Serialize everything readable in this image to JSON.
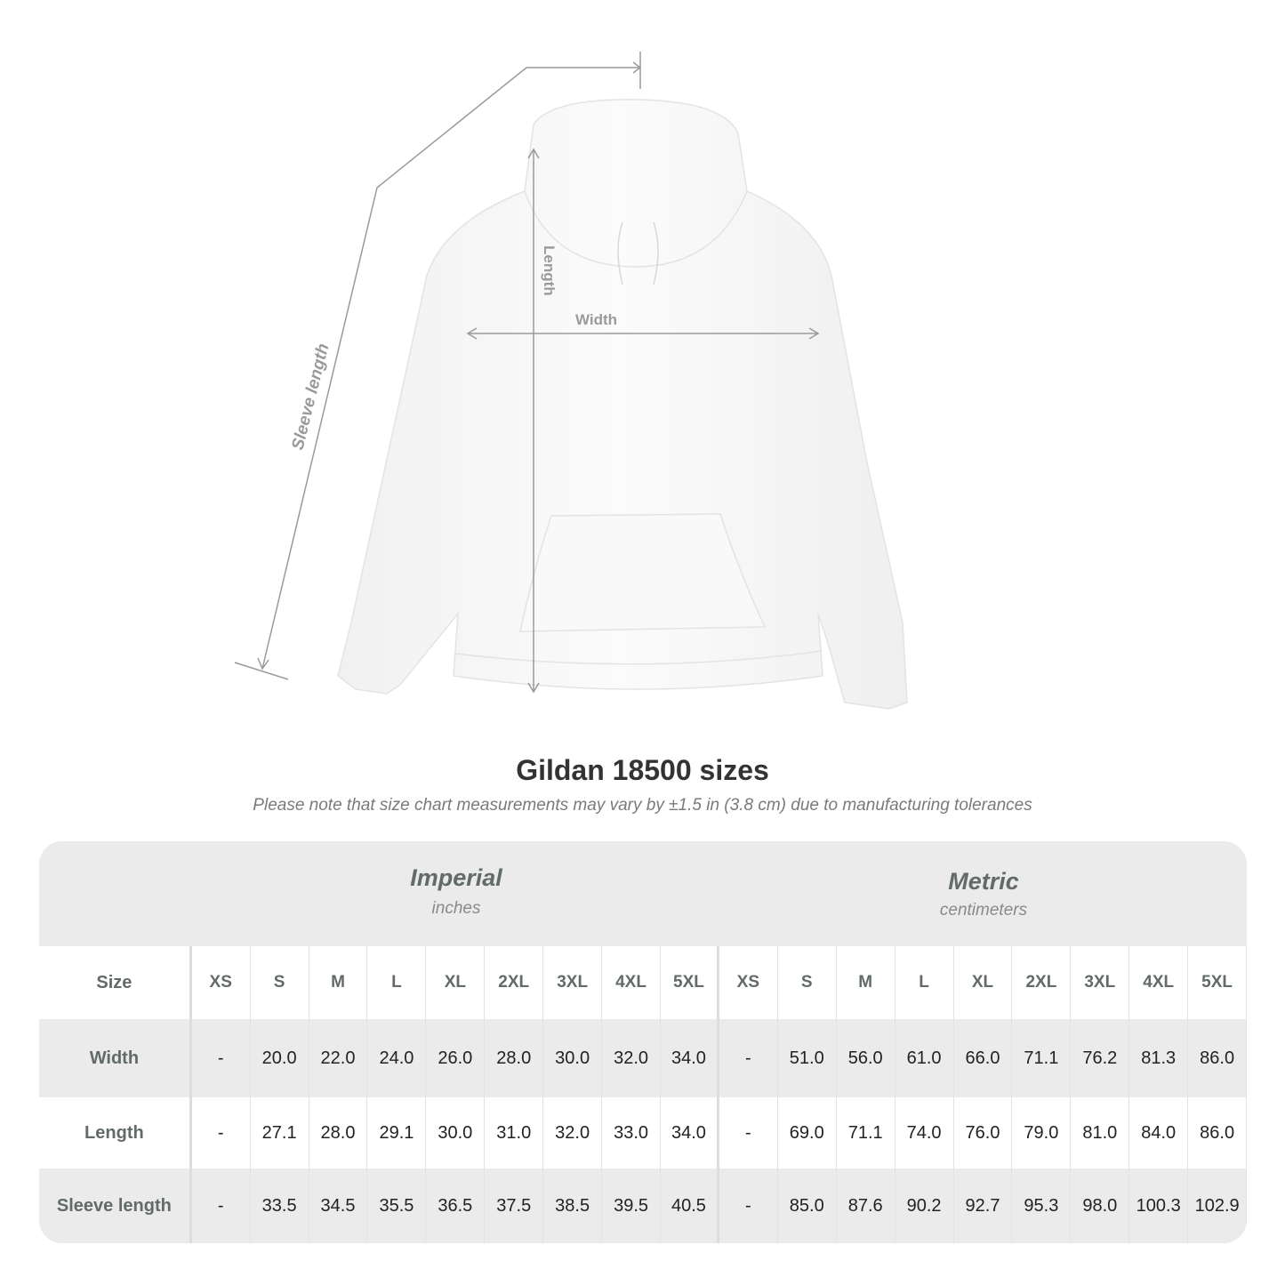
{
  "diagram": {
    "labels": {
      "length": "Length",
      "width": "Width",
      "sleeve": "Sleeve length"
    },
    "colors": {
      "garment": "#ffffff",
      "measure_line": "#9a9a9a"
    }
  },
  "title": "Gildan 18500 sizes",
  "subtitle": "Please note that size chart measurements may vary by ±1.5 in (3.8 cm) due to manufacturing tolerances",
  "table": {
    "imperial": {
      "name": "Imperial",
      "unit": "inches"
    },
    "metric": {
      "name": "Metric",
      "unit": "centimeters"
    },
    "size_label": "Size",
    "sizes": [
      "XS",
      "S",
      "M",
      "L",
      "XL",
      "2XL",
      "3XL",
      "4XL",
      "5XL"
    ],
    "rows": [
      {
        "label": "Width",
        "imperial": [
          "-",
          "20.0",
          "22.0",
          "24.0",
          "26.0",
          "28.0",
          "30.0",
          "32.0",
          "34.0"
        ],
        "metric": [
          "-",
          "51.0",
          "56.0",
          "61.0",
          "66.0",
          "71.1",
          "76.2",
          "81.3",
          "86.0"
        ]
      },
      {
        "label": "Length",
        "imperial": [
          "-",
          "27.1",
          "28.0",
          "29.1",
          "30.0",
          "31.0",
          "32.0",
          "33.0",
          "34.0"
        ],
        "metric": [
          "-",
          "69.0",
          "71.1",
          "74.0",
          "76.0",
          "79.0",
          "81.0",
          "84.0",
          "86.0"
        ]
      },
      {
        "label": "Sleeve length",
        "imperial": [
          "-",
          "33.5",
          "34.5",
          "35.5",
          "36.5",
          "37.5",
          "38.5",
          "39.5",
          "40.5"
        ],
        "metric": [
          "-",
          "85.0",
          "87.6",
          "90.2",
          "92.7",
          "95.3",
          "98.0",
          "100.3",
          "102.9"
        ]
      }
    ],
    "colors": {
      "header_bg": "#ebebeb",
      "label_text": "#626a6a"
    }
  }
}
